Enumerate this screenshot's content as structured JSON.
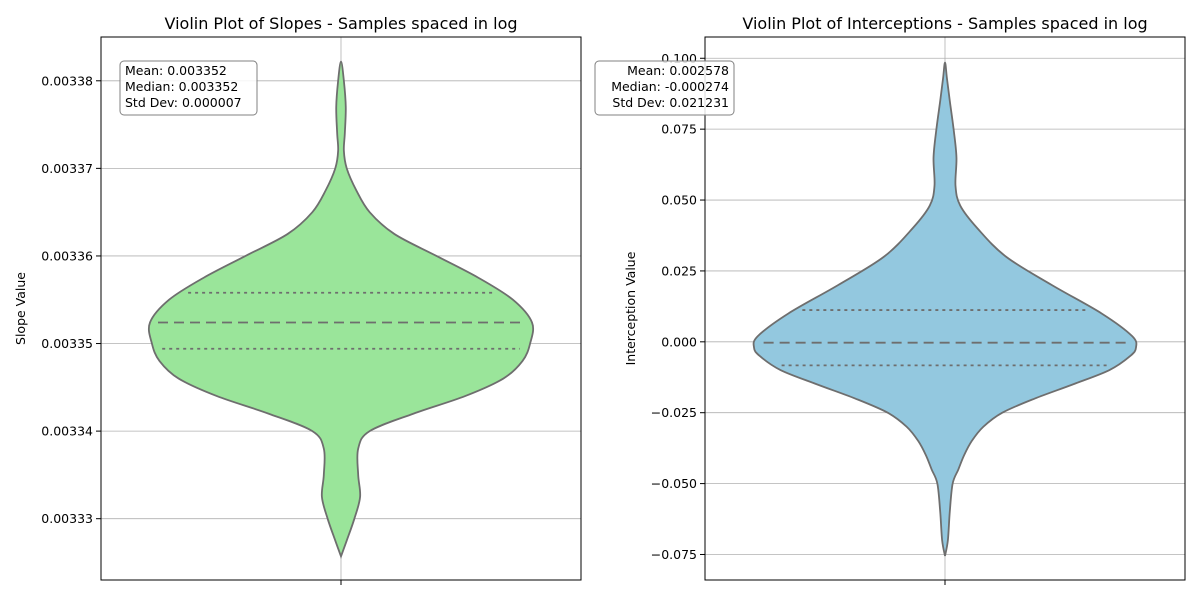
{
  "chart_data": [
    {
      "type": "violin",
      "title": "Violin Plot of Slopes - Samples spaced in log",
      "xlabel": "",
      "ylabel": "Slope Value",
      "ylim": [
        0.003323,
        0.003385
      ],
      "yticks": [
        0.00333,
        0.00334,
        0.00335,
        0.00336,
        0.00337,
        0.00338
      ],
      "ytick_labels": [
        "0.00333",
        "0.00334",
        "0.00335",
        "0.00336",
        "0.00337",
        "0.00338"
      ],
      "grid": true,
      "fill_color": "#9ae59a",
      "edge_color": "#6e6e6e",
      "data_min": 0.0033257,
      "data_max": 0.0033822,
      "median": 0.0033524,
      "q1": 0.0033494,
      "q3": 0.0033558,
      "density_profile": [
        {
          "y": 0.0033257,
          "w": 0.0
        },
        {
          "y": 0.0033275,
          "w": 0.03
        },
        {
          "y": 0.00333,
          "w": 0.07
        },
        {
          "y": 0.0033325,
          "w": 0.1
        },
        {
          "y": 0.003335,
          "w": 0.09
        },
        {
          "y": 0.003338,
          "w": 0.09
        },
        {
          "y": 0.00334,
          "w": 0.15
        },
        {
          "y": 0.003342,
          "w": 0.38
        },
        {
          "y": 0.003344,
          "w": 0.65
        },
        {
          "y": 0.003346,
          "w": 0.85
        },
        {
          "y": 0.003348,
          "w": 0.95
        },
        {
          "y": 0.00335,
          "w": 0.99
        },
        {
          "y": 0.0033524,
          "w": 1.0
        },
        {
          "y": 0.003355,
          "w": 0.9
        },
        {
          "y": 0.0033575,
          "w": 0.72
        },
        {
          "y": 0.00336,
          "w": 0.5
        },
        {
          "y": 0.0033625,
          "w": 0.28
        },
        {
          "y": 0.003365,
          "w": 0.15
        },
        {
          "y": 0.0033675,
          "w": 0.08
        },
        {
          "y": 0.00337,
          "w": 0.03
        },
        {
          "y": 0.003372,
          "w": 0.015
        },
        {
          "y": 0.003374,
          "w": 0.02
        },
        {
          "y": 0.003377,
          "w": 0.025
        },
        {
          "y": 0.00338,
          "w": 0.015
        },
        {
          "y": 0.0033822,
          "w": 0.0
        }
      ],
      "stats_lines": [
        "Mean: 0.003352",
        "Median: 0.003352",
        "Std Dev: 0.000007"
      ]
    },
    {
      "type": "violin",
      "title": "Violin Plot of Interceptions - Samples spaced in log",
      "xlabel": "",
      "ylabel": "Interception Value",
      "ylim": [
        -0.084,
        0.1075
      ],
      "yticks": [
        -0.075,
        -0.05,
        -0.025,
        0.0,
        0.025,
        0.05,
        0.075,
        0.1
      ],
      "ytick_labels": [
        "−0.075",
        "−0.050",
        "−0.025",
        "0.000",
        "0.025",
        "0.050",
        "0.075",
        "0.100"
      ],
      "grid": true,
      "fill_color": "#93c8df",
      "edge_color": "#6e6e6e",
      "data_min": -0.0755,
      "data_max": 0.0985,
      "median": -0.0003,
      "q1": -0.0083,
      "q3": 0.0112,
      "density_profile": [
        {
          "y": -0.0755,
          "w": 0.0
        },
        {
          "y": -0.07,
          "w": 0.015
        },
        {
          "y": -0.06,
          "w": 0.025
        },
        {
          "y": -0.05,
          "w": 0.04
        },
        {
          "y": -0.045,
          "w": 0.07
        },
        {
          "y": -0.04,
          "w": 0.1
        },
        {
          "y": -0.035,
          "w": 0.14
        },
        {
          "y": -0.03,
          "w": 0.2
        },
        {
          "y": -0.025,
          "w": 0.3
        },
        {
          "y": -0.02,
          "w": 0.47
        },
        {
          "y": -0.015,
          "w": 0.67
        },
        {
          "y": -0.01,
          "w": 0.86
        },
        {
          "y": -0.005,
          "w": 0.97
        },
        {
          "y": -0.002,
          "w": 1.0
        },
        {
          "y": 0.002,
          "w": 0.98
        },
        {
          "y": 0.01,
          "w": 0.82
        },
        {
          "y": 0.02,
          "w": 0.56
        },
        {
          "y": 0.03,
          "w": 0.32
        },
        {
          "y": 0.04,
          "w": 0.17
        },
        {
          "y": 0.048,
          "w": 0.08
        },
        {
          "y": 0.055,
          "w": 0.055
        },
        {
          "y": 0.065,
          "w": 0.06
        },
        {
          "y": 0.075,
          "w": 0.045
        },
        {
          "y": 0.085,
          "w": 0.025
        },
        {
          "y": 0.093,
          "w": 0.01
        },
        {
          "y": 0.0985,
          "w": 0.0
        }
      ],
      "stats_lines": [
        "Mean: 0.002578",
        "Median: -0.000274",
        "Std Dev: 0.021231"
      ]
    }
  ]
}
